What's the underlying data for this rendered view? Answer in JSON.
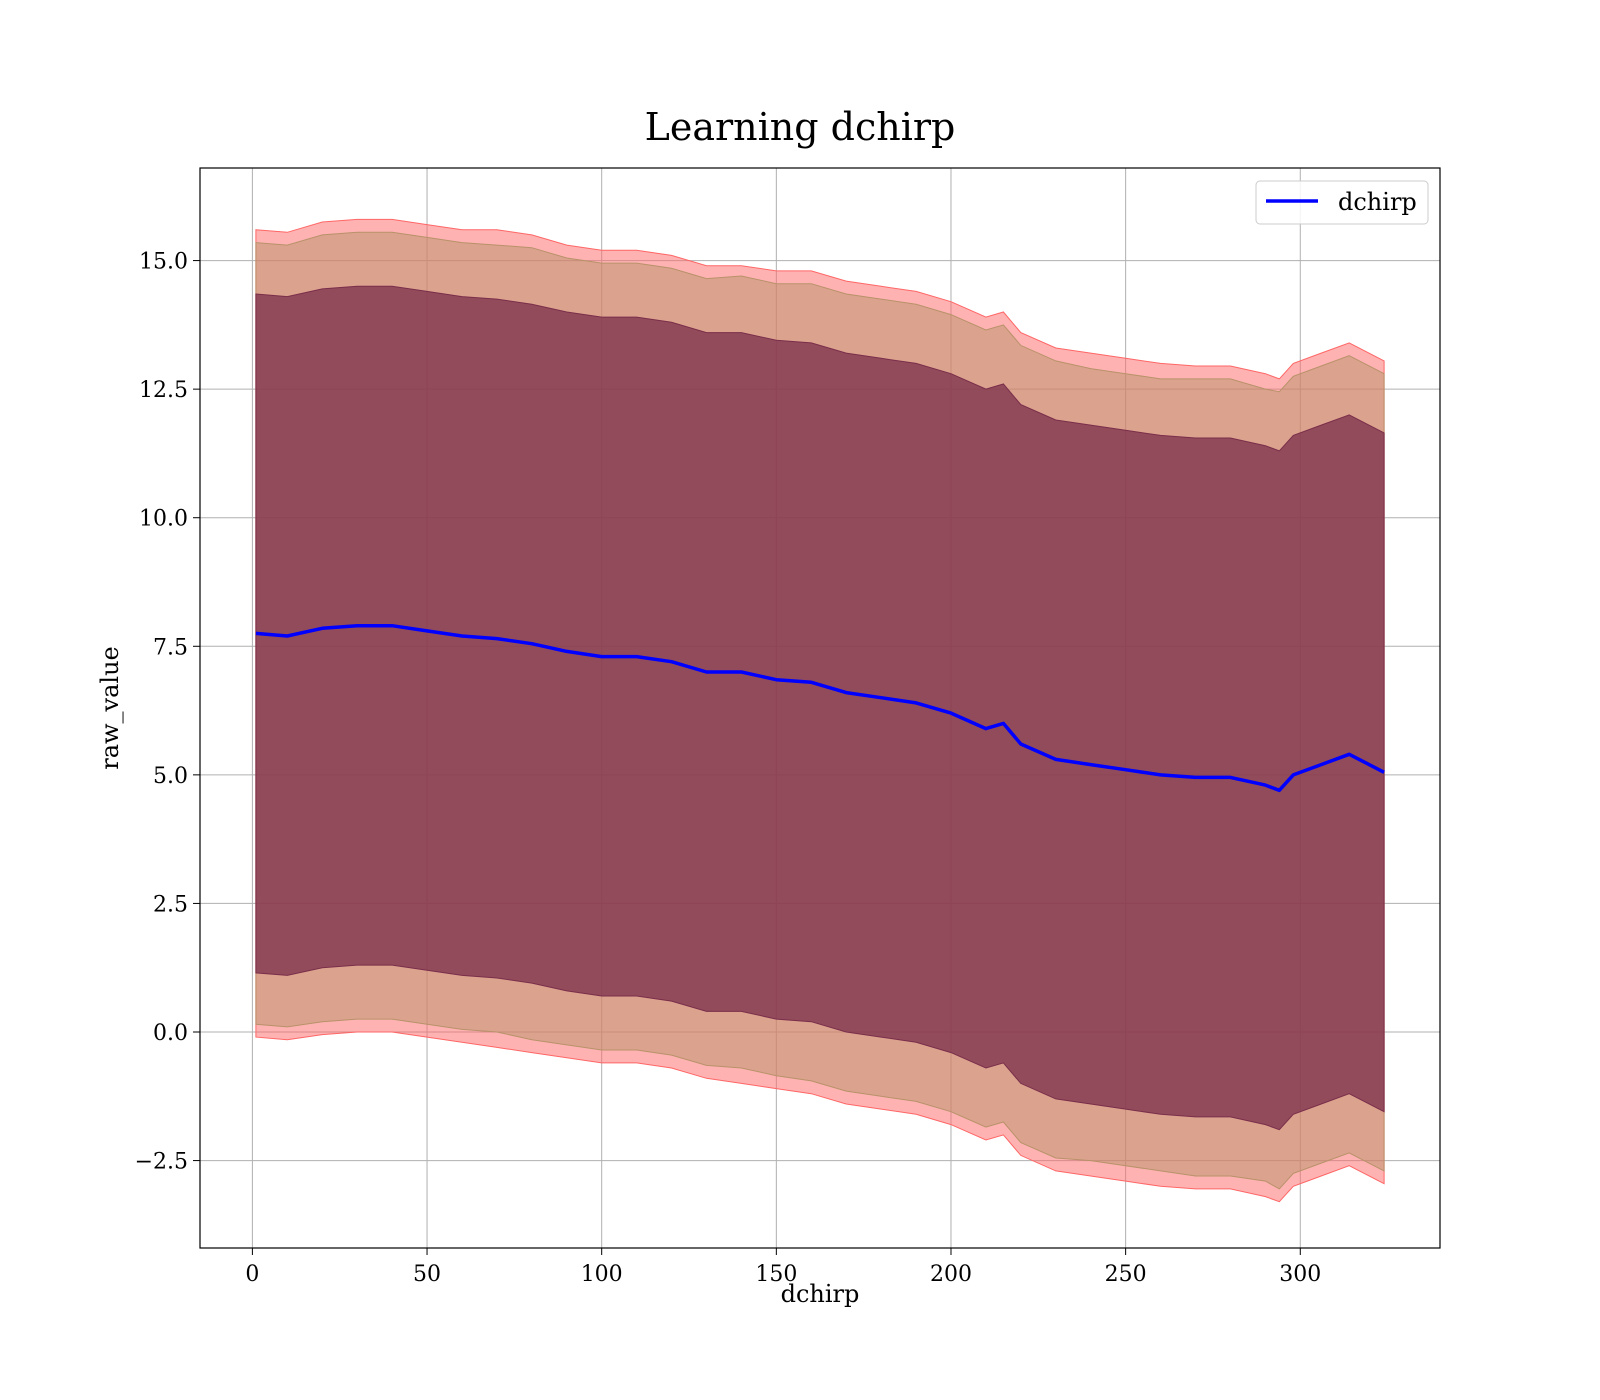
{
  "chart_data": {
    "type": "area",
    "title": "Learning dchirp",
    "xlabel": "dchirp",
    "ylabel": "raw_value",
    "xlim": [
      -15,
      340
    ],
    "ylim": [
      -4.2,
      16.8
    ],
    "grid": true,
    "legend_position": "top-right",
    "x_ticks": [
      0,
      50,
      100,
      150,
      200,
      250,
      300
    ],
    "y_ticks": [
      -2.5,
      0.0,
      2.5,
      5.0,
      7.5,
      10.0,
      12.5,
      15.0
    ],
    "x_tick_labels": [
      "0",
      "50",
      "100",
      "150",
      "200",
      "250",
      "300"
    ],
    "y_tick_labels": [
      "−2.5",
      "0.0",
      "2.5",
      "5.0",
      "7.5",
      "10.0",
      "12.5",
      "15.0"
    ],
    "x": [
      1,
      10,
      20,
      30,
      40,
      50,
      60,
      70,
      80,
      90,
      100,
      110,
      120,
      130,
      140,
      150,
      160,
      170,
      180,
      190,
      200,
      210,
      215,
      220,
      230,
      240,
      250,
      260,
      270,
      280,
      290,
      294,
      298,
      306,
      314,
      324
    ],
    "series": [
      {
        "name": "dchirp",
        "color": "#0000ff",
        "values": [
          7.75,
          7.7,
          7.85,
          7.9,
          7.9,
          7.8,
          7.7,
          7.65,
          7.55,
          7.4,
          7.3,
          7.3,
          7.2,
          7.0,
          7.0,
          6.85,
          6.8,
          6.6,
          6.5,
          6.4,
          6.2,
          5.9,
          6.0,
          5.6,
          5.3,
          5.2,
          5.1,
          5.0,
          4.95,
          4.95,
          4.8,
          4.7,
          5.0,
          5.2,
          5.4,
          5.05
        ]
      }
    ],
    "bands": [
      {
        "name": "outer band",
        "color": "#ff6666",
        "lower": [
          -0.1,
          -0.15,
          -0.05,
          0.0,
          0.0,
          -0.1,
          -0.2,
          -0.3,
          -0.4,
          -0.5,
          -0.6,
          -0.6,
          -0.7,
          -0.9,
          -1.0,
          -1.1,
          -1.2,
          -1.4,
          -1.5,
          -1.6,
          -1.8,
          -2.1,
          -2.0,
          -2.4,
          -2.7,
          -2.8,
          -2.9,
          -3.0,
          -3.05,
          -3.05,
          -3.2,
          -3.3,
          -3.0,
          -2.8,
          -2.6,
          -2.95
        ],
        "upper": [
          15.6,
          15.55,
          15.75,
          15.8,
          15.8,
          15.7,
          15.6,
          15.6,
          15.5,
          15.3,
          15.2,
          15.2,
          15.1,
          14.9,
          14.9,
          14.8,
          14.8,
          14.6,
          14.5,
          14.4,
          14.2,
          13.9,
          14.0,
          13.6,
          13.3,
          13.2,
          13.1,
          13.0,
          12.95,
          12.95,
          12.8,
          12.7,
          13.0,
          13.2,
          13.4,
          13.05
        ]
      },
      {
        "name": "middle band",
        "color": "#b8926a",
        "lower": [
          0.15,
          0.1,
          0.2,
          0.25,
          0.25,
          0.15,
          0.05,
          0.0,
          -0.15,
          -0.25,
          -0.35,
          -0.35,
          -0.45,
          -0.65,
          -0.7,
          -0.85,
          -0.95,
          -1.15,
          -1.25,
          -1.35,
          -1.55,
          -1.85,
          -1.75,
          -2.15,
          -2.45,
          -2.5,
          -2.6,
          -2.7,
          -2.8,
          -2.8,
          -2.9,
          -3.05,
          -2.75,
          -2.55,
          -2.35,
          -2.7
        ],
        "upper": [
          15.35,
          15.3,
          15.5,
          15.55,
          15.55,
          15.45,
          15.35,
          15.3,
          15.25,
          15.05,
          14.95,
          14.95,
          14.85,
          14.65,
          14.7,
          14.55,
          14.55,
          14.35,
          14.25,
          14.15,
          13.95,
          13.65,
          13.75,
          13.35,
          13.05,
          12.9,
          12.8,
          12.7,
          12.7,
          12.7,
          12.5,
          12.45,
          12.75,
          12.95,
          13.15,
          12.8
        ]
      },
      {
        "name": "inner band",
        "color": "#7a2e4a",
        "lower": [
          1.15,
          1.1,
          1.25,
          1.3,
          1.3,
          1.2,
          1.1,
          1.05,
          0.95,
          0.8,
          0.7,
          0.7,
          0.6,
          0.4,
          0.4,
          0.25,
          0.2,
          0.0,
          -0.1,
          -0.2,
          -0.4,
          -0.7,
          -0.6,
          -1.0,
          -1.3,
          -1.4,
          -1.5,
          -1.6,
          -1.65,
          -1.65,
          -1.8,
          -1.9,
          -1.6,
          -1.4,
          -1.2,
          -1.55
        ],
        "upper": [
          14.35,
          14.3,
          14.45,
          14.5,
          14.5,
          14.4,
          14.3,
          14.25,
          14.15,
          14.0,
          13.9,
          13.9,
          13.8,
          13.6,
          13.6,
          13.45,
          13.4,
          13.2,
          13.1,
          13.0,
          12.8,
          12.5,
          12.6,
          12.2,
          11.9,
          11.8,
          11.7,
          11.6,
          11.55,
          11.55,
          11.4,
          11.3,
          11.6,
          11.8,
          12.0,
          11.65
        ]
      }
    ],
    "legend": [
      {
        "label": "dchirp",
        "color": "#0000ff"
      }
    ]
  }
}
